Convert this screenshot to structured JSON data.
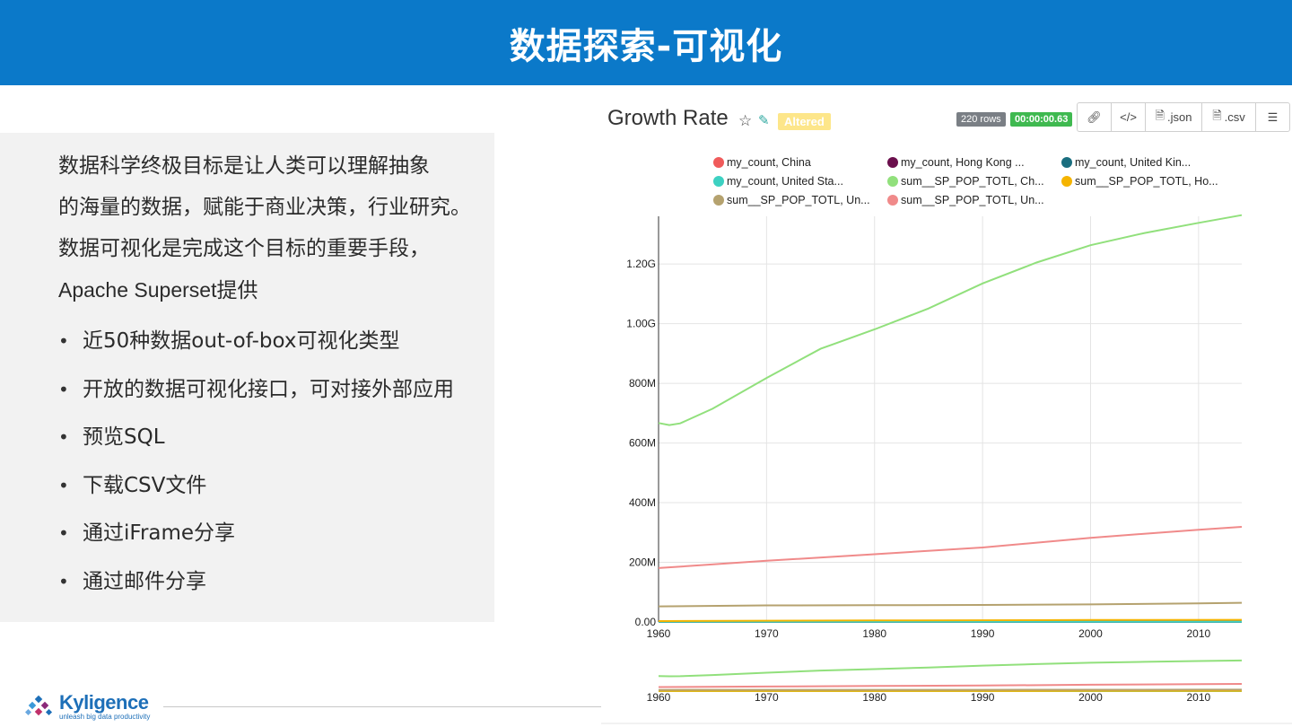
{
  "header": {
    "title": "数据探索-可视化"
  },
  "intro": {
    "lines": [
      "数据科学终极目标是让人类可以理解抽象",
      "的海量的数据，赋能于商业决策，行业研究。",
      "数据可视化是完成这个目标的重要手段，",
      "Apache Superset提供"
    ]
  },
  "bullets": [
    "近50种数据out-of-box可视化类型",
    "开放的数据可视化接口，可对接外部应用",
    "预览SQL",
    "下载CSV文件",
    "通过iFrame分享",
    "通过邮件分享"
  ],
  "footer": {
    "logo_word": "Kyligence",
    "logo_tagline": "unleash big data productivity"
  },
  "chart_panel": {
    "title": "Growth Rate",
    "altered_label": "Altered",
    "rows_label": "220 rows",
    "time_label": "00:00:00.63",
    "toolbar": {
      "link_icon": "link-icon",
      "embed_icon": "code-icon",
      "json_label": ".json",
      "csv_label": ".csv",
      "menu_icon": "menu-icon"
    }
  },
  "chart_data": {
    "type": "line",
    "xlim": [
      1960,
      2014
    ],
    "ylim": [
      0,
      1360000000.0
    ],
    "x_ticks": [
      1960,
      1970,
      1980,
      1990,
      2000,
      2010
    ],
    "x_tick_labels": [
      "1960",
      "1970",
      "1980",
      "1990",
      "2000",
      "2010"
    ],
    "y_ticks": [
      0,
      200000000.0,
      400000000.0,
      600000000.0,
      800000000.0,
      1000000000.0,
      1200000000.0
    ],
    "y_tick_labels": [
      "0.00",
      "200M",
      "400M",
      "600M",
      "800M",
      "1.00G",
      "1.20G"
    ],
    "grid": true,
    "legend_position": "top",
    "series": [
      {
        "name": "my_count, China",
        "color": "#f05b5b",
        "points": [
          [
            1960,
            1000000.0
          ],
          [
            2014,
            1000000.0
          ]
        ]
      },
      {
        "name": "my_count, Hong Kong ...",
        "color": "#6b0f4d",
        "points": [
          [
            1960,
            1000000.0
          ],
          [
            2014,
            1000000.0
          ]
        ]
      },
      {
        "name": "my_count, United Kin...",
        "color": "#1a6e7f",
        "points": [
          [
            1960,
            1000000.0
          ],
          [
            2014,
            1000000.0
          ]
        ]
      },
      {
        "name": "my_count, United Sta...",
        "color": "#3dd1c2",
        "points": [
          [
            1960,
            1000000.0
          ],
          [
            2014,
            1000000.0
          ]
        ]
      },
      {
        "name": "sum__SP_POP_TOTL, Ch...",
        "color": "#91e07c",
        "points": [
          [
            1960,
            667000000.0
          ],
          [
            1961,
            660000000.0
          ],
          [
            1962,
            666000000.0
          ],
          [
            1965,
            715000000.0
          ],
          [
            1970,
            818000000.0
          ],
          [
            1975,
            916000000.0
          ],
          [
            1980,
            981000000.0
          ],
          [
            1985,
            1051000000.0
          ],
          [
            1990,
            1135000000.0
          ],
          [
            1995,
            1205000000.0
          ],
          [
            2000,
            1263000000.0
          ],
          [
            2005,
            1304000000.0
          ],
          [
            2010,
            1338000000.0
          ],
          [
            2014,
            1364000000.0
          ]
        ]
      },
      {
        "name": "sum__SP_POP_TOTL, Ho...",
        "color": "#f5b400",
        "points": [
          [
            1960,
            3100000.0
          ],
          [
            1980,
            5100000.0
          ],
          [
            2000,
            6700000.0
          ],
          [
            2014,
            7200000.0
          ]
        ]
      },
      {
        "name": "sum__SP_POP_TOTL, Un...",
        "color": "#b5a26f",
        "points": [
          [
            1960,
            52400000.0
          ],
          [
            1970,
            55600000.0
          ],
          [
            1980,
            56300000.0
          ],
          [
            1990,
            57200000.0
          ],
          [
            2000,
            58900000.0
          ],
          [
            2010,
            62700000.0
          ],
          [
            2014,
            64500000.0
          ]
        ]
      },
      {
        "name": "sum__SP_POP_TOTL, Un...",
        "color": "#f08a8a",
        "points": [
          [
            1960,
            180700000.0
          ],
          [
            1970,
            205100000.0
          ],
          [
            1980,
            227300000.0
          ],
          [
            1990,
            249600000.0
          ],
          [
            2000,
            282200000.0
          ],
          [
            2010,
            309300000.0
          ],
          [
            2014,
            318800000.0
          ]
        ]
      }
    ],
    "navigator": {
      "x_ticks": [
        1960,
        1970,
        1980,
        1990,
        2000,
        2010
      ],
      "x_tick_labels": [
        "1960",
        "1970",
        "1980",
        "1990",
        "2000",
        "2010"
      ]
    }
  }
}
